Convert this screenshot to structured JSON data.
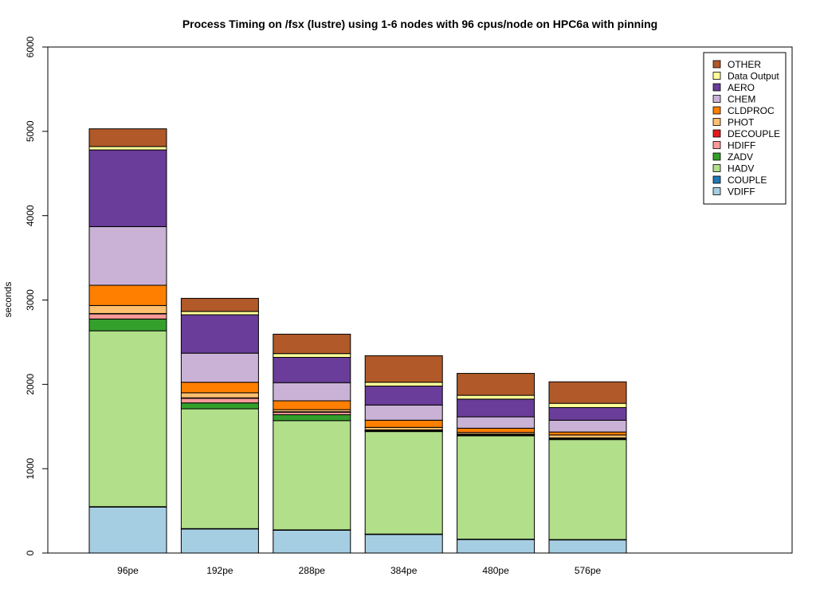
{
  "chart_data": {
    "type": "bar",
    "stacked": true,
    "title": "Process Timing on /fsx (lustre) using 1-6 nodes with 96 cpus/node on HPC6a with pinning",
    "ylabel": "seconds",
    "xlabel": "",
    "ylim": [
      0,
      6000
    ],
    "yticks": [
      0,
      1000,
      2000,
      3000,
      4000,
      5000,
      6000
    ],
    "categories": [
      "96pe",
      "192pe",
      "288pe",
      "384pe",
      "480pe",
      "576pe"
    ],
    "legend_position": "top-right",
    "grid": false,
    "series": [
      {
        "name": "VDIFF",
        "color": "#a6cee3",
        "values": [
          545,
          285,
          270,
          220,
          160,
          155
        ]
      },
      {
        "name": "COUPLE",
        "color": "#1f78b4",
        "values": [
          5,
          5,
          5,
          5,
          5,
          5
        ]
      },
      {
        "name": "HADV",
        "color": "#b2df8a",
        "values": [
          2085,
          1420,
          1295,
          1215,
          1225,
          1185
        ]
      },
      {
        "name": "ZADV",
        "color": "#33a02c",
        "values": [
          140,
          70,
          70,
          10,
          10,
          10
        ]
      },
      {
        "name": "HDIFF",
        "color": "#fb9a99",
        "values": [
          60,
          55,
          30,
          5,
          5,
          5
        ]
      },
      {
        "name": "DECOUPLE",
        "color": "#e31a1c",
        "values": [
          5,
          5,
          5,
          5,
          5,
          5
        ]
      },
      {
        "name": "PHOT",
        "color": "#fdbf6f",
        "values": [
          95,
          60,
          25,
          30,
          20,
          35
        ]
      },
      {
        "name": "CLDPROC",
        "color": "#ff7f00",
        "values": [
          240,
          125,
          105,
          85,
          50,
          35
        ]
      },
      {
        "name": "CHEM",
        "color": "#cab2d6",
        "values": [
          695,
          345,
          215,
          180,
          135,
          140
        ]
      },
      {
        "name": "AERO",
        "color": "#6a3d9a",
        "values": [
          910,
          455,
          300,
          225,
          210,
          150
        ]
      },
      {
        "name": "Data Output",
        "color": "#ffff99",
        "values": [
          40,
          40,
          45,
          45,
          45,
          50
        ]
      },
      {
        "name": "OTHER",
        "color": "#b15928",
        "values": [
          210,
          155,
          230,
          315,
          260,
          255
        ]
      }
    ]
  }
}
